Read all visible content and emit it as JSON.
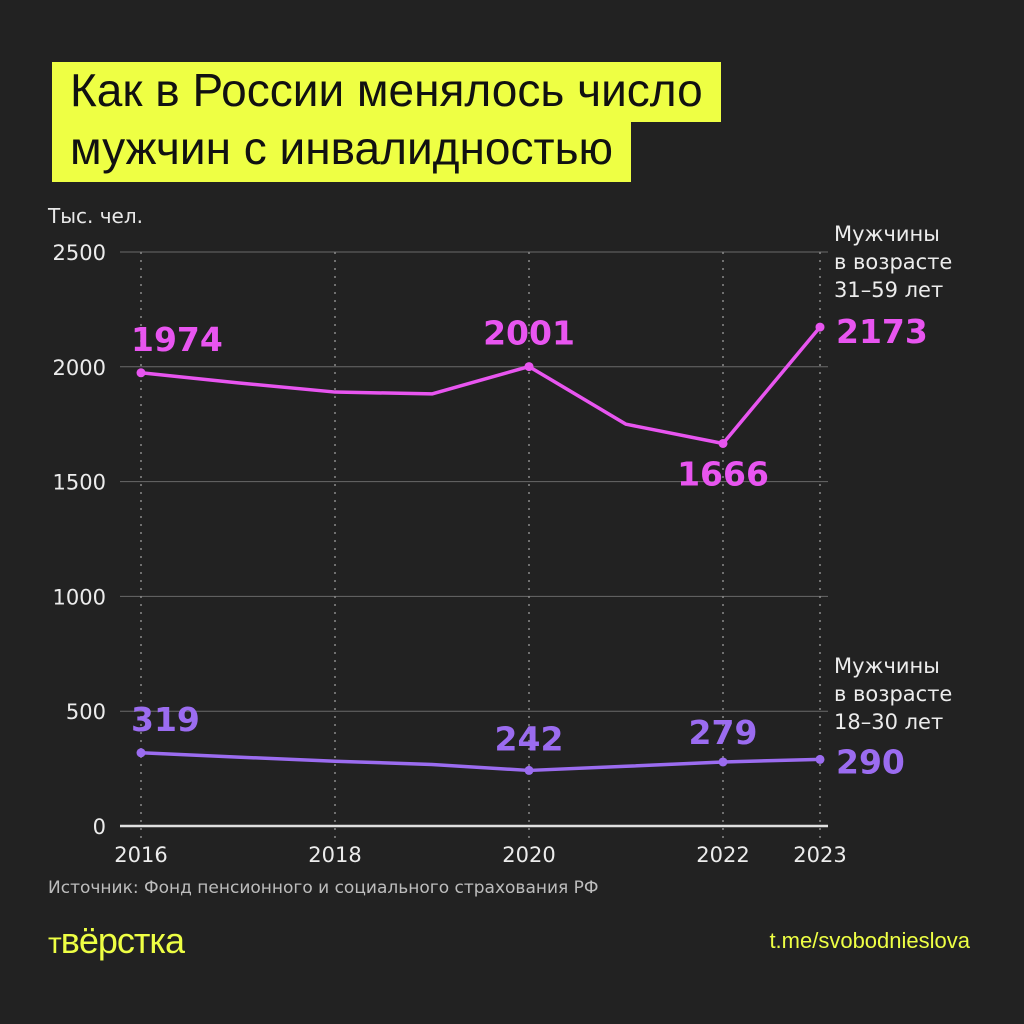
{
  "title": {
    "line1": "Как в России менялось число",
    "line2": "мужчин с инвалидностью"
  },
  "unit_label": "Тыс. чел.",
  "source": "Источник: Фонд пенсионного и социального страхования РФ",
  "footer": {
    "logo": "вёрстка",
    "link": "t.me/svobodnieslova"
  },
  "legend": {
    "series1": [
      "Мужчины",
      "в возрасте",
      "31–59 лет"
    ],
    "series2": [
      "Мужчины",
      "в возрасте",
      "18–30 лет"
    ]
  },
  "colors": {
    "background": "#222222",
    "title_bg": "#eeff44",
    "series1": "#e855f0",
    "series2": "#9b6cf0",
    "grid": "#6a6a6a",
    "accent_text": "#eeff44"
  },
  "chart_data": {
    "type": "line",
    "title": "Как в России менялось число мужчин с инвалидностью",
    "xlabel": "",
    "ylabel": "Тыс. чел.",
    "ylim": [
      0,
      2500
    ],
    "yticks": [
      0,
      500,
      1000,
      1500,
      2000,
      2500
    ],
    "xticks": [
      2016,
      2018,
      2020,
      2022,
      2023
    ],
    "x": [
      2016,
      2017,
      2018,
      2019,
      2020,
      2021,
      2022,
      2023
    ],
    "grid": true,
    "legend_position": "right, inline labels",
    "series": [
      {
        "name": "Мужчины в возрасте 31–59 лет",
        "values": [
          1974,
          1930,
          1890,
          1882,
          2001,
          1750,
          1666,
          2173
        ],
        "labeled_points": {
          "2016": 1974,
          "2020": 2001,
          "2022": 1666,
          "2023": 2173
        }
      },
      {
        "name": "Мужчины в возрасте 18–30 лет",
        "values": [
          319,
          300,
          282,
          268,
          242,
          260,
          279,
          290
        ],
        "labeled_points": {
          "2016": 319,
          "2020": 242,
          "2022": 279,
          "2023": 290
        }
      }
    ]
  }
}
